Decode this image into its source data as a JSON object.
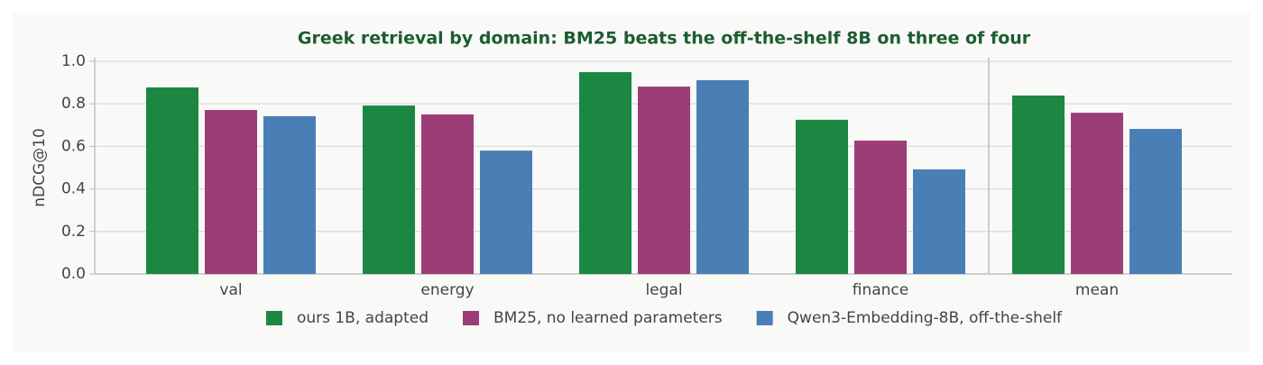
{
  "chart_data": {
    "type": "bar",
    "title": "Greek retrieval by domain: BM25 beats the off-the-shelf 8B on three of four",
    "ylabel": "nDCG@10",
    "categories": [
      "val",
      "energy",
      "legal",
      "finance",
      "mean"
    ],
    "series": [
      {
        "name": "ours 1B, adapted",
        "color": "#1b8743",
        "values": [
          0.877,
          0.792,
          0.949,
          0.725,
          0.839
        ]
      },
      {
        "name": "BM25, no learned parameters",
        "color": "#9c3d78",
        "values": [
          0.771,
          0.75,
          0.881,
          0.627,
          0.758
        ]
      },
      {
        "name": "Qwen3-Embedding-8B, off-the-shelf",
        "color": "#4a7fb6",
        "values": [
          0.742,
          0.58,
          0.911,
          0.492,
          0.682
        ]
      }
    ],
    "ylim": [
      0,
      1
    ],
    "yticks": [
      {
        "value": 0,
        "label": "0.0"
      },
      0.2,
      0.4,
      0.6,
      0.8,
      {
        "value": 1,
        "label": "1.0"
      }
    ],
    "grid": true,
    "legend": "bottom"
  }
}
